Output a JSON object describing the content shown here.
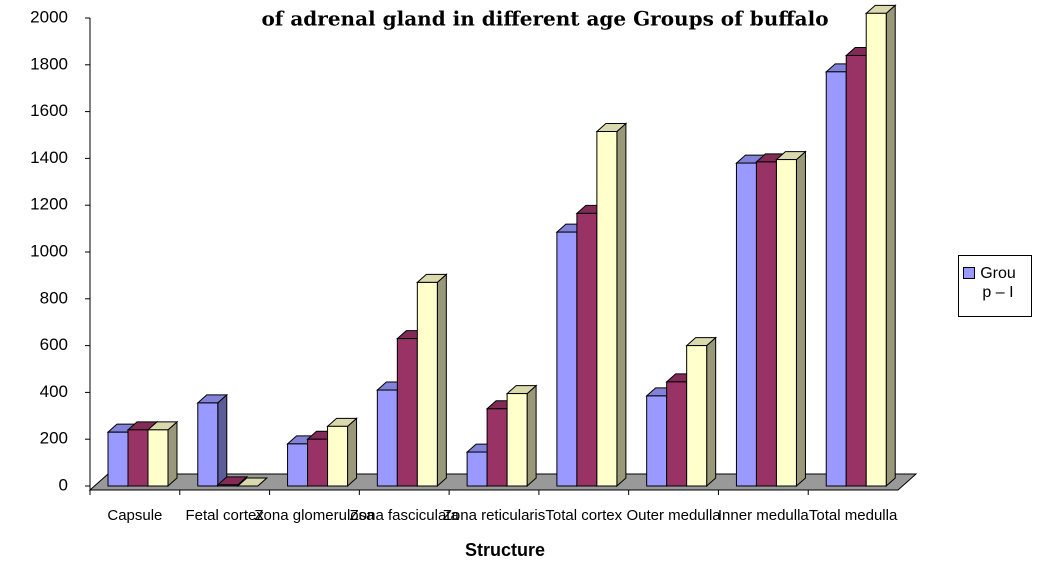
{
  "chart_data": {
    "type": "bar3d",
    "title": "of adrenal gland in different age Groups of buffalo",
    "x_label": "Structure",
    "categories": [
      "Capsule",
      "Fetal cortex",
      "Zona glomerulosa",
      "Zona fasciculata",
      "Zona reticularis",
      "Total cortex",
      "Outer medulla",
      "Inner medulla",
      "Total medulla"
    ],
    "series": [
      {
        "name": "Group – I",
        "color": "#9999ff",
        "values": [
          230,
          355,
          180,
          410,
          145,
          1085,
          385,
          1380,
          1770
        ]
      },
      {
        "color": "#993366",
        "values": [
          240,
          5,
          200,
          630,
          330,
          1165,
          445,
          1385,
          1840
        ]
      },
      {
        "color": "#ffffcc",
        "values": [
          240,
          0,
          255,
          870,
          395,
          1515,
          600,
          1395,
          2020
        ]
      }
    ],
    "ylim": [
      0,
      2000
    ],
    "yticks": [
      0,
      200,
      400,
      600,
      800,
      1000,
      1200,
      1400,
      1600,
      1800,
      2000
    ],
    "legend": "right"
  }
}
